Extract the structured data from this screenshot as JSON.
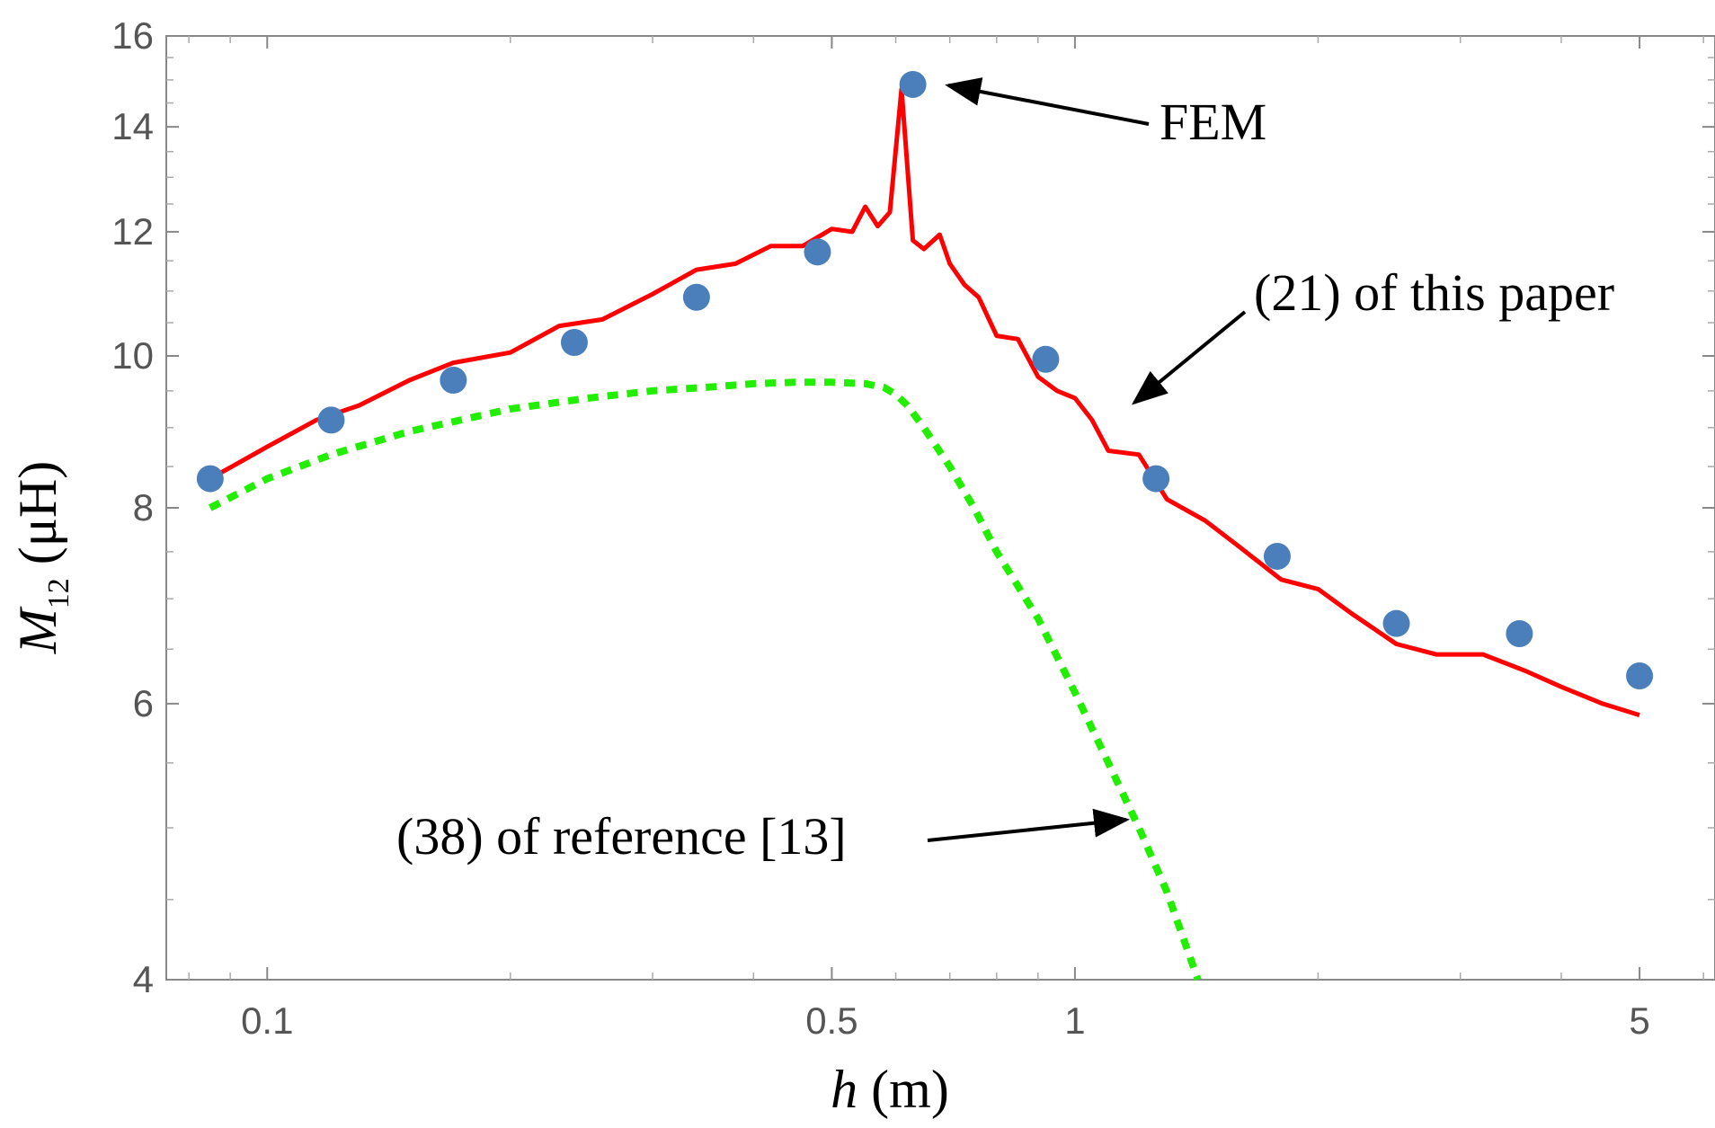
{
  "chart_data": {
    "type": "line",
    "x_scale": "log",
    "y_scale": "log",
    "xlim": [
      0.075,
      6.2
    ],
    "ylim": [
      4,
      16
    ],
    "x_ticks": [
      0.1,
      0.5,
      1,
      5
    ],
    "x_tick_labels": [
      "0.1",
      "0.5",
      "1",
      "5"
    ],
    "y_ticks": [
      4,
      6,
      8,
      10,
      12,
      14,
      16
    ],
    "y_tick_labels": [
      "4",
      "6",
      "8",
      "10",
      "12",
      "14",
      "16"
    ],
    "xlabel": {
      "var": "h",
      "unit": " (m)"
    },
    "ylabel": {
      "var": "M",
      "sub": "12",
      "unit": " (μH)"
    },
    "series": [
      {
        "name": "(21) of this paper",
        "style": "solid",
        "color": "#ff0000",
        "x": [
          0.085,
          0.1,
          0.115,
          0.13,
          0.15,
          0.17,
          0.2,
          0.23,
          0.26,
          0.3,
          0.34,
          0.38,
          0.42,
          0.46,
          0.5,
          0.53,
          0.55,
          0.57,
          0.59,
          0.61,
          0.63,
          0.65,
          0.68,
          0.7,
          0.73,
          0.76,
          0.8,
          0.85,
          0.9,
          0.95,
          1.0,
          1.05,
          1.1,
          1.2,
          1.3,
          1.45,
          1.6,
          1.8,
          2.0,
          2.2,
          2.5,
          2.8,
          3.2,
          3.6,
          4.0,
          4.5,
          5.0
        ],
        "values": [
          8.35,
          8.75,
          9.1,
          9.3,
          9.65,
          9.9,
          10.05,
          10.45,
          10.55,
          10.95,
          11.35,
          11.45,
          11.75,
          11.75,
          12.05,
          12.0,
          12.45,
          12.1,
          12.35,
          14.8,
          11.85,
          11.7,
          11.95,
          11.45,
          11.1,
          10.9,
          10.3,
          10.25,
          9.7,
          9.5,
          9.4,
          9.1,
          8.7,
          8.65,
          8.1,
          7.85,
          7.55,
          7.2,
          7.1,
          6.85,
          6.55,
          6.45,
          6.45,
          6.3,
          6.15,
          6.0,
          5.9
        ]
      },
      {
        "name": "(38) of reference [13]",
        "style": "dotted",
        "color": "#22ee00",
        "x": [
          0.085,
          0.1,
          0.12,
          0.15,
          0.2,
          0.25,
          0.3,
          0.35,
          0.4,
          0.45,
          0.5,
          0.55,
          0.58,
          0.6,
          0.62,
          0.65,
          0.7,
          0.75,
          0.8,
          0.9,
          1.0,
          1.1,
          1.2,
          1.3,
          1.42
        ],
        "values": [
          8.0,
          8.35,
          8.65,
          8.95,
          9.25,
          9.4,
          9.5,
          9.55,
          9.6,
          9.62,
          9.62,
          9.6,
          9.55,
          9.45,
          9.3,
          9.0,
          8.5,
          8.0,
          7.5,
          6.8,
          6.1,
          5.5,
          5.0,
          4.55,
          4.0
        ]
      },
      {
        "name": "FEM",
        "style": "points",
        "color": "#4a7fbb",
        "x": [
          0.085,
          0.12,
          0.17,
          0.24,
          0.34,
          0.48,
          0.63,
          0.92,
          1.26,
          1.78,
          2.5,
          3.55,
          5.0
        ],
        "values": [
          8.35,
          9.1,
          9.65,
          10.2,
          10.9,
          11.65,
          14.9,
          9.95,
          8.35,
          7.45,
          6.75,
          6.65,
          6.25
        ]
      }
    ],
    "annotations": [
      {
        "text": "FEM",
        "target_series": "FEM"
      },
      {
        "text": "(21) of this paper",
        "target_series": "(21) of this paper"
      },
      {
        "text": "(38) of reference [13]",
        "target_series": "(38) of reference [13]"
      }
    ]
  }
}
